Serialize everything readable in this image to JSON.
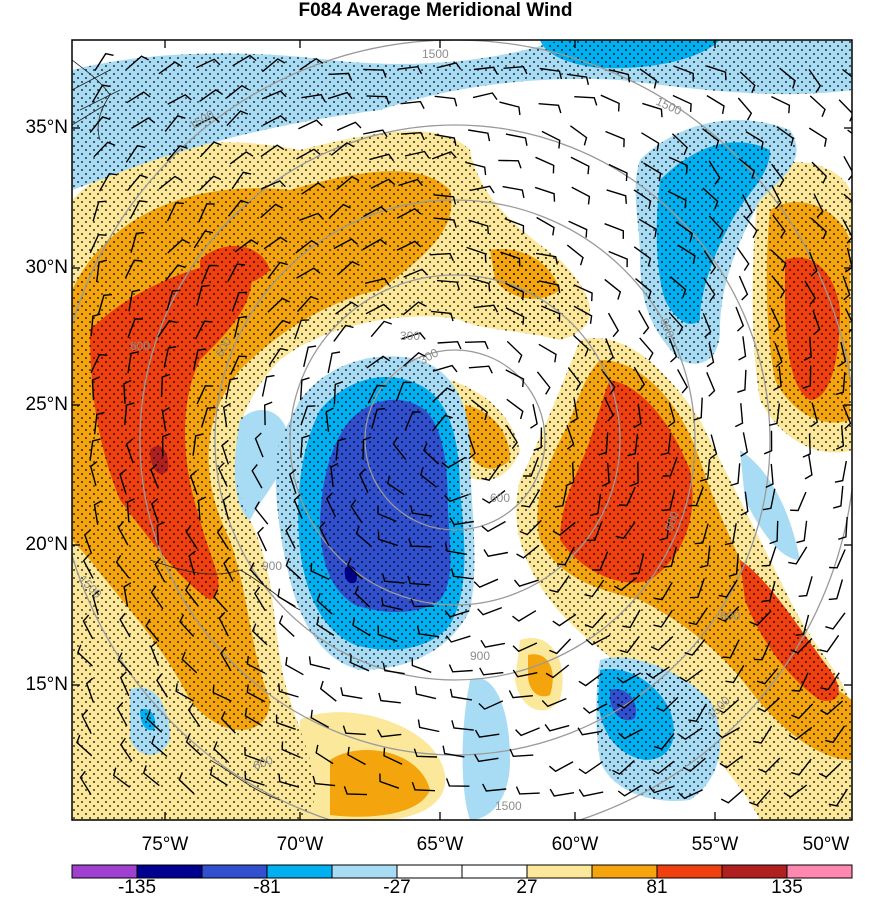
{
  "title": "F084 Average Meridional Wind",
  "map": {
    "lat_labels": [
      "35°N",
      "30°N",
      "25°N",
      "20°N",
      "15°N"
    ],
    "lon_labels": [
      "75°W",
      "70°W",
      "65°W",
      "60°W",
      "55°W",
      "50°W"
    ],
    "contour_labels": [
      "1500",
      "1500",
      "1500",
      "300",
      "600",
      "900",
      "600",
      "900",
      "1500",
      "1500",
      "600",
      "900",
      "1500",
      "600",
      "600",
      "600",
      "300"
    ],
    "stipple_note": ""
  },
  "colorbar": {
    "labels": [
      "-135",
      "-81",
      "-27",
      "27",
      "81",
      "135"
    ],
    "colors": [
      "#a040d0",
      "#000090",
      "#3050d0",
      "#00b0f0",
      "#a8dcf4",
      "#ffffff",
      "#ffffff",
      "#fbe89a",
      "#f4a40c",
      "#f04010",
      "#b02020",
      "#ff88b0"
    ]
  }
}
